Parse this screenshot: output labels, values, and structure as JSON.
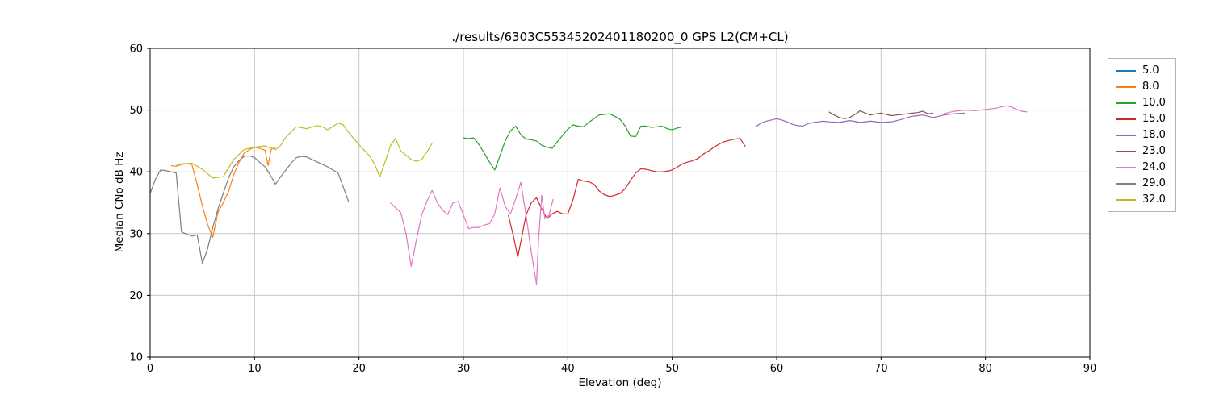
{
  "chart_data": {
    "type": "line",
    "title": "./results/6303C55345202401180200_0 GPS L2(CM+CL)",
    "xlabel": "Elevation (deg)",
    "ylabel": "Median CNo dB Hz",
    "xlim": [
      0,
      90
    ],
    "ylim": [
      10,
      60
    ],
    "xticks": [
      0,
      10,
      20,
      30,
      40,
      50,
      60,
      70,
      80,
      90
    ],
    "yticks": [
      10,
      20,
      30,
      40,
      50,
      60
    ],
    "grid": true,
    "grid_color": "#c6c6c6",
    "legend_position": "outside-right",
    "series": [
      {
        "name": "5.0",
        "color": "#1f77b4",
        "segments": []
      },
      {
        "name": "8.0",
        "color": "#ff7f0e",
        "segments": [
          {
            "x": [
              2,
              2.5,
              3,
              3.5,
              4,
              4.5,
              5,
              5.5,
              6,
              6.5,
              7,
              7.5,
              8,
              8.5,
              9,
              9.5,
              10,
              10.5,
              11,
              11.3,
              11.6,
              12
            ],
            "y": [
              41.0,
              40.9,
              41.2,
              41.3,
              41.2,
              38.0,
              34.5,
              31.5,
              29.4,
              33.5,
              35.0,
              36.8,
              39.5,
              41.5,
              43.0,
              43.6,
              44.0,
              43.8,
              43.5,
              41.0,
              43.7,
              43.9
            ]
          }
        ]
      },
      {
        "name": "10.0",
        "color": "#2ca02c",
        "segments": [
          {
            "x": [
              30,
              30.5,
              31,
              31.5,
              32,
              32.5,
              33,
              33.5,
              34,
              34.5,
              35,
              35.5,
              36,
              36.5,
              37,
              37.5,
              38,
              38.5,
              39,
              39.5,
              40,
              40.5,
              41,
              41.5,
              42,
              42.5,
              43,
              43.5,
              44,
              44.5,
              45,
              45.5,
              46,
              46.5,
              47,
              47.5,
              48,
              48.5,
              49,
              49.5,
              50,
              50.5,
              51
            ],
            "y": [
              45.5,
              45.4,
              45.5,
              44.4,
              43.0,
              41.6,
              40.3,
              42.6,
              45.0,
              46.6,
              47.4,
              46.0,
              45.3,
              45.2,
              45.0,
              44.3,
              44.0,
              43.8,
              44.9,
              45.9,
              46.9,
              47.6,
              47.4,
              47.3,
              48.0,
              48.6,
              49.2,
              49.3,
              49.4,
              49.0,
              48.5,
              47.4,
              45.8,
              45.7,
              47.4,
              47.4,
              47.2,
              47.3,
              47.4,
              47.0,
              46.8,
              47.1,
              47.3
            ]
          }
        ]
      },
      {
        "name": "15.0",
        "color": "#d62728",
        "segments": [
          {
            "x": [
              34.3,
              34.8,
              35.2,
              35.6,
              36,
              36.5,
              37,
              37.5,
              38,
              38.5,
              39,
              39.5,
              40,
              40.5,
              41,
              41.5,
              42,
              42.5,
              43,
              43.5,
              44,
              44.5,
              45,
              45.5,
              46,
              46.5,
              47,
              47.5,
              48,
              48.5,
              49,
              49.5,
              50,
              50.5,
              51,
              51.5,
              52,
              52.5,
              53,
              53.5,
              54,
              54.5,
              55,
              55.5,
              56,
              56.5,
              57
            ],
            "y": [
              33.0,
              29.5,
              26.2,
              29.5,
              33.0,
              35.0,
              35.8,
              34.0,
              32.4,
              33.2,
              33.6,
              33.2,
              33.2,
              35.5,
              38.8,
              38.5,
              38.4,
              38.0,
              36.9,
              36.3,
              36.0,
              36.2,
              36.5,
              37.3,
              38.6,
              39.8,
              40.5,
              40.4,
              40.2,
              40.0,
              40.0,
              40.1,
              40.3,
              40.8,
              41.3,
              41.6,
              41.8,
              42.2,
              42.9,
              43.4,
              44.0,
              44.5,
              44.9,
              45.1,
              45.3,
              45.4,
              44.1
            ]
          }
        ]
      },
      {
        "name": "18.0",
        "color": "#9467bd",
        "segments": [
          {
            "x": [
              58,
              58.5,
              59,
              59.5,
              60,
              60.5,
              61,
              61.5,
              62,
              62.5,
              63,
              63.5,
              64,
              64.5,
              65,
              66,
              67,
              68,
              69,
              70,
              71,
              72,
              72.5,
              73,
              73.5,
              74,
              74.5,
              75,
              75.5,
              76,
              77,
              78
            ],
            "y": [
              47.3,
              47.9,
              48.2,
              48.4,
              48.6,
              48.4,
              48.1,
              47.7,
              47.5,
              47.4,
              47.8,
              48.0,
              48.1,
              48.2,
              48.1,
              48.0,
              48.3,
              48.0,
              48.2,
              48.0,
              48.1,
              48.5,
              48.8,
              49.0,
              49.1,
              49.2,
              49.0,
              48.8,
              49.0,
              49.2,
              49.4,
              49.5
            ]
          }
        ]
      },
      {
        "name": "23.0",
        "color": "#8c564b",
        "segments": [
          {
            "x": [
              65,
              65.5,
              66,
              66.5,
              67,
              67.5,
              68,
              68.5,
              69,
              69.5,
              70,
              70.5,
              71,
              71.5,
              72,
              72.5,
              73,
              73.5,
              74,
              74.5,
              75
            ],
            "y": [
              49.7,
              49.2,
              48.8,
              48.6,
              48.8,
              49.3,
              49.9,
              49.5,
              49.2,
              49.4,
              49.5,
              49.3,
              49.1,
              49.2,
              49.3,
              49.4,
              49.5,
              49.6,
              49.8,
              49.4,
              49.5
            ]
          }
        ]
      },
      {
        "name": "24.0",
        "color": "#e377c2",
        "segments": [
          {
            "x": [
              23,
              23.5,
              24,
              24.5,
              25,
              25.5,
              26,
              26.5,
              27,
              27.5,
              28,
              28.5,
              29,
              29.5,
              30,
              30.5,
              31,
              31.5,
              32,
              32.5,
              33,
              33.5,
              34,
              34.5,
              35,
              35.5,
              36,
              36.5,
              37,
              37.2,
              37.5,
              37.8,
              38.2,
              38.6
            ],
            "y": [
              35.0,
              34.2,
              33.4,
              30.0,
              24.7,
              29.0,
              33.0,
              35.2,
              37.0,
              35.0,
              33.8,
              33.1,
              35.0,
              35.2,
              33.0,
              30.8,
              31.0,
              31.0,
              31.4,
              31.6,
              33.2,
              37.4,
              34.4,
              33.2,
              35.6,
              38.3,
              33.0,
              27.0,
              21.8,
              29.0,
              36.2,
              32.4,
              33.0,
              35.6
            ]
          },
          {
            "x": [
              76,
              77,
              78,
              79,
              80,
              81,
              82,
              82.5,
              83,
              83.5,
              84
            ],
            "y": [
              49.4,
              49.8,
              50.0,
              49.9,
              50.1,
              50.3,
              50.7,
              50.5,
              50.1,
              49.8,
              49.7
            ]
          }
        ]
      },
      {
        "name": "29.0",
        "color": "#7f7f7f",
        "segments": [
          {
            "x": [
              0,
              0.5,
              1,
              1.5,
              2,
              2.5,
              3,
              3.5,
              4,
              4.5,
              5,
              5.5,
              6,
              6.5,
              7,
              7.5,
              8,
              8.5,
              9,
              9.5,
              10,
              10.5,
              11,
              11.5,
              12,
              12.5,
              13,
              13.5,
              14,
              14.5,
              15,
              15.5,
              16,
              16.5,
              17,
              17.5,
              18,
              18.5,
              19
            ],
            "y": [
              36.5,
              38.8,
              40.3,
              40.2,
              40.0,
              39.8,
              30.3,
              29.9,
              29.6,
              29.8,
              25.2,
              27.5,
              31.0,
              34.0,
              36.5,
              39.0,
              40.8,
              41.8,
              42.5,
              42.6,
              42.3,
              41.5,
              40.8,
              39.5,
              38.0,
              39.2,
              40.3,
              41.4,
              42.3,
              42.5,
              42.4,
              42.0,
              41.6,
              41.2,
              40.8,
              40.3,
              39.8,
              37.5,
              35.2
            ]
          }
        ]
      },
      {
        "name": "32.0",
        "color": "#bcbd22",
        "segments": [
          {
            "x": [
              2.5,
              3,
              4,
              5,
              6,
              7,
              8,
              9,
              10,
              11,
              12,
              12.5,
              13,
              14,
              15,
              16,
              16.5,
              17,
              18,
              18.5,
              19,
              20,
              21,
              21.5,
              22,
              22.5,
              23,
              23.5,
              24,
              25,
              25.5,
              26,
              26.5,
              27
            ],
            "y": [
              41.0,
              41.3,
              41.4,
              40.4,
              39.0,
              39.2,
              42.0,
              43.6,
              44.0,
              44.2,
              43.6,
              44.3,
              45.6,
              47.3,
              47.0,
              47.5,
              47.3,
              46.8,
              47.9,
              47.6,
              46.4,
              44.4,
              42.6,
              41.2,
              39.2,
              41.6,
              44.2,
              45.4,
              43.4,
              42.0,
              41.7,
              42.0,
              43.2,
              44.6
            ]
          }
        ]
      }
    ]
  }
}
